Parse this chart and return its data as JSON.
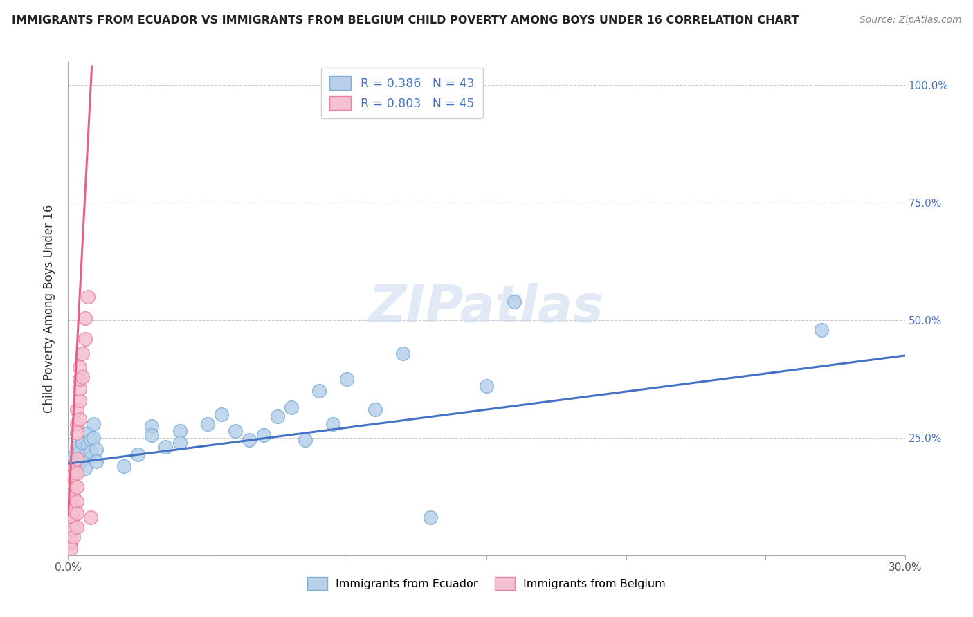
{
  "title": "IMMIGRANTS FROM ECUADOR VS IMMIGRANTS FROM BELGIUM CHILD POVERTY AMONG BOYS UNDER 16 CORRELATION CHART",
  "source": "Source: ZipAtlas.com",
  "ylabel": "Child Poverty Among Boys Under 16",
  "xlim": [
    0.0,
    0.3
  ],
  "ylim": [
    0.0,
    1.05
  ],
  "ecuador_color": "#b8d0ea",
  "ecuador_edge": "#7aaed6",
  "belgium_color": "#f5c0d0",
  "belgium_edge": "#e8829e",
  "legend_ecuador_label": "R = 0.386   N = 43",
  "legend_belgium_label": "R = 0.803   N = 45",
  "watermark": "ZIPatlas",
  "ecuador_line_color": "#4472c4",
  "belgium_line_color": "#e8608a",
  "ecuador_scatter": [
    [
      0.001,
      0.2
    ],
    [
      0.002,
      0.21
    ],
    [
      0.002,
      0.19
    ],
    [
      0.003,
      0.23
    ],
    [
      0.003,
      0.18
    ],
    [
      0.004,
      0.22
    ],
    [
      0.004,
      0.195
    ],
    [
      0.005,
      0.24
    ],
    [
      0.005,
      0.205
    ],
    [
      0.006,
      0.215
    ],
    [
      0.006,
      0.185
    ],
    [
      0.007,
      0.26
    ],
    [
      0.007,
      0.235
    ],
    [
      0.008,
      0.245
    ],
    [
      0.008,
      0.22
    ],
    [
      0.009,
      0.28
    ],
    [
      0.009,
      0.25
    ],
    [
      0.01,
      0.225
    ],
    [
      0.01,
      0.2
    ],
    [
      0.02,
      0.19
    ],
    [
      0.025,
      0.215
    ],
    [
      0.03,
      0.275
    ],
    [
      0.03,
      0.255
    ],
    [
      0.035,
      0.23
    ],
    [
      0.04,
      0.265
    ],
    [
      0.04,
      0.24
    ],
    [
      0.05,
      0.28
    ],
    [
      0.055,
      0.3
    ],
    [
      0.06,
      0.265
    ],
    [
      0.065,
      0.245
    ],
    [
      0.07,
      0.255
    ],
    [
      0.075,
      0.295
    ],
    [
      0.08,
      0.315
    ],
    [
      0.085,
      0.245
    ],
    [
      0.09,
      0.35
    ],
    [
      0.095,
      0.28
    ],
    [
      0.1,
      0.375
    ],
    [
      0.11,
      0.31
    ],
    [
      0.12,
      0.43
    ],
    [
      0.13,
      0.08
    ],
    [
      0.15,
      0.36
    ],
    [
      0.16,
      0.54
    ],
    [
      0.27,
      0.48
    ]
  ],
  "belgium_scatter": [
    [
      0.001,
      0.175
    ],
    [
      0.001,
      0.155
    ],
    [
      0.001,
      0.13
    ],
    [
      0.001,
      0.105
    ],
    [
      0.001,
      0.085
    ],
    [
      0.001,
      0.065
    ],
    [
      0.001,
      0.14
    ],
    [
      0.001,
      0.165
    ],
    [
      0.001,
      0.045
    ],
    [
      0.001,
      0.025
    ],
    [
      0.001,
      0.055
    ],
    [
      0.001,
      0.095
    ],
    [
      0.001,
      0.12
    ],
    [
      0.001,
      0.03
    ],
    [
      0.001,
      0.015
    ],
    [
      0.001,
      0.075
    ],
    [
      0.002,
      0.19
    ],
    [
      0.002,
      0.15
    ],
    [
      0.002,
      0.11
    ],
    [
      0.002,
      0.08
    ],
    [
      0.002,
      0.055
    ],
    [
      0.002,
      0.125
    ],
    [
      0.002,
      0.17
    ],
    [
      0.002,
      0.095
    ],
    [
      0.002,
      0.04
    ],
    [
      0.003,
      0.205
    ],
    [
      0.003,
      0.175
    ],
    [
      0.003,
      0.145
    ],
    [
      0.003,
      0.115
    ],
    [
      0.003,
      0.09
    ],
    [
      0.003,
      0.06
    ],
    [
      0.003,
      0.28
    ],
    [
      0.003,
      0.31
    ],
    [
      0.003,
      0.26
    ],
    [
      0.004,
      0.33
    ],
    [
      0.004,
      0.29
    ],
    [
      0.004,
      0.355
    ],
    [
      0.004,
      0.4
    ],
    [
      0.004,
      0.375
    ],
    [
      0.005,
      0.43
    ],
    [
      0.005,
      0.38
    ],
    [
      0.006,
      0.46
    ],
    [
      0.006,
      0.505
    ],
    [
      0.007,
      0.55
    ],
    [
      0.008,
      0.08
    ]
  ],
  "ecuador_line_x": [
    0.0,
    0.3
  ],
  "ecuador_line_y": [
    0.195,
    0.425
  ],
  "belgium_line_x": [
    0.0,
    0.0085
  ],
  "belgium_line_y": [
    0.085,
    1.04
  ]
}
